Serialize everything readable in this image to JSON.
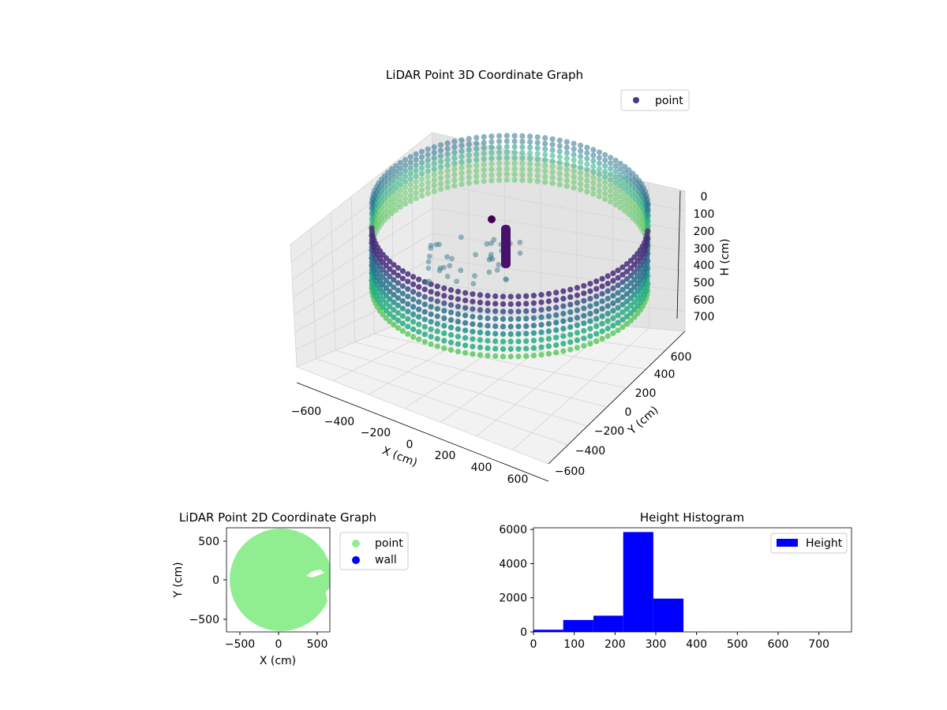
{
  "chart_data": [
    {
      "type": "scatter3d",
      "title": "LiDAR Point 3D Coordinate Graph",
      "xlabel": "X (cm)",
      "ylabel": "Y (cm)",
      "zlabel": "H (cm)",
      "x_ticks": [
        "−600",
        "−400",
        "−200",
        "0",
        "200",
        "400",
        "600"
      ],
      "y_ticks": [
        "−600",
        "−400",
        "−200",
        "0",
        "200",
        "400",
        "600"
      ],
      "z_ticks": [
        "0",
        "100",
        "200",
        "300",
        "400",
        "500",
        "600",
        "700"
      ],
      "xlim": [
        -650,
        650
      ],
      "ylim": [
        -650,
        650
      ],
      "zlim": [
        0,
        750
      ],
      "z_inverted": true,
      "grid": true,
      "legend": {
        "placement": "top-right",
        "entries": [
          "point"
        ]
      },
      "series": [
        {
          "name": "point",
          "color": "#453781",
          "colormap": "viridis",
          "shape": {
            "kind": "cylindrical wall",
            "radius": 620,
            "center": [
              0,
              0
            ],
            "h_range": [
              220,
              370
            ],
            "opening": "x>400, y -200..100"
          }
        }
      ]
    },
    {
      "type": "scatter",
      "title": "LiDAR Point 2D Coordinate Graph",
      "xlabel": "X (cm)",
      "ylabel": "Y (cm)",
      "x_ticks": [
        -500,
        0,
        500
      ],
      "y_ticks": [
        -500,
        0,
        500
      ],
      "xlim": [
        -660,
        660
      ],
      "ylim": [
        -660,
        660
      ],
      "legend": {
        "placement": "outside-right",
        "entries": [
          "point",
          "wall"
        ]
      },
      "series": [
        {
          "name": "point",
          "color": "#90EE90",
          "shape": "filled disk",
          "center": [
            0,
            0
          ],
          "radius": 620
        },
        {
          "name": "wall",
          "color": "#0000FF"
        }
      ]
    },
    {
      "type": "bar",
      "title": "Height Histogram",
      "xlabel": "",
      "ylabel": "",
      "xlim": [
        0,
        780
      ],
      "ylim": [
        0,
        6100
      ],
      "x_ticks": [
        0,
        100,
        200,
        300,
        400,
        500,
        600,
        700
      ],
      "y_ticks": [
        0,
        2000,
        4000,
        6000
      ],
      "legend": {
        "placement": "top-right",
        "entries": [
          "Height"
        ]
      },
      "bins": [
        {
          "x0": 0,
          "x1": 73,
          "value": 130
        },
        {
          "x0": 73,
          "x1": 147,
          "value": 700
        },
        {
          "x0": 147,
          "x1": 220,
          "value": 950
        },
        {
          "x0": 220,
          "x1": 294,
          "value": 5850
        },
        {
          "x0": 294,
          "x1": 368,
          "value": 1950
        },
        {
          "x0": 368,
          "x1": 780,
          "value": 0
        }
      ],
      "series": [
        {
          "name": "Height",
          "color": "#0000FF"
        }
      ]
    }
  ]
}
